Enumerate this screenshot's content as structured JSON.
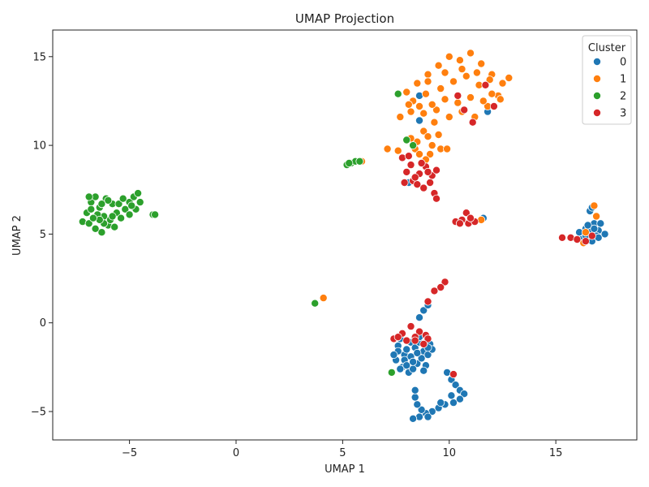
{
  "chart_data": {
    "type": "scatter",
    "title": "UMAP Projection",
    "xlabel": "UMAP 1",
    "ylabel": "UMAP 2",
    "xlim": [
      -8.6,
      18.8
    ],
    "ylim": [
      -6.6,
      16.5
    ],
    "xticks": [
      -5,
      0,
      5,
      10,
      15
    ],
    "yticks": [
      -5,
      0,
      5,
      10,
      15
    ],
    "grid": false,
    "legend": {
      "title": "Cluster",
      "placement": "top-right"
    },
    "series": [
      {
        "name": "0",
        "color": "#1f77b4",
        "points": [
          [
            8.6,
            12.8
          ],
          [
            8.6,
            11.4
          ],
          [
            11.8,
            11.9
          ],
          [
            11.6,
            5.9
          ],
          [
            8.1,
            7.9
          ],
          [
            16.4,
            5.3
          ],
          [
            16.6,
            5.1
          ],
          [
            16.8,
            5.6
          ],
          [
            16.5,
            4.8
          ],
          [
            17.0,
            5.2
          ],
          [
            16.7,
            4.6
          ],
          [
            17.1,
            5.6
          ],
          [
            16.3,
            5.0
          ],
          [
            16.9,
            4.9
          ],
          [
            16.6,
            6.3
          ],
          [
            17.3,
            5.0
          ],
          [
            16.2,
            4.7
          ],
          [
            16.8,
            5.3
          ],
          [
            16.5,
            5.5
          ],
          [
            17.0,
            4.8
          ],
          [
            16.4,
            4.9
          ],
          [
            16.7,
            6.5
          ],
          [
            16.1,
            5.1
          ],
          [
            8.6,
            0.3
          ],
          [
            8.8,
            0.7
          ],
          [
            9.0,
            1.0
          ],
          [
            7.6,
            -1.3
          ],
          [
            7.9,
            -1.8
          ],
          [
            8.2,
            -1.1
          ],
          [
            8.5,
            -2.3
          ],
          [
            8.8,
            -1.6
          ],
          [
            9.1,
            -1.2
          ],
          [
            7.8,
            -2.5
          ],
          [
            8.1,
            -2.8
          ],
          [
            8.4,
            -1.4
          ],
          [
            8.7,
            -2.0
          ],
          [
            9.0,
            -1.8
          ],
          [
            7.5,
            -2.1
          ],
          [
            7.7,
            -0.9
          ],
          [
            8.0,
            -1.5
          ],
          [
            8.3,
            -2.6
          ],
          [
            8.6,
            -1.1
          ],
          [
            8.9,
            -2.4
          ],
          [
            7.9,
            -2.1
          ],
          [
            8.2,
            -1.9
          ],
          [
            8.5,
            -1.7
          ],
          [
            7.6,
            -1.6
          ],
          [
            8.8,
            -2.7
          ],
          [
            9.2,
            -1.5
          ],
          [
            7.4,
            -1.8
          ],
          [
            8.0,
            -2.4
          ],
          [
            8.6,
            -0.8
          ],
          [
            8.3,
            -2.2
          ],
          [
            7.7,
            -2.6
          ],
          [
            9.0,
            -1.4
          ],
          [
            9.9,
            -2.8
          ],
          [
            10.1,
            -3.2
          ],
          [
            10.3,
            -3.5
          ],
          [
            10.5,
            -3.8
          ],
          [
            10.7,
            -4.0
          ],
          [
            10.5,
            -4.3
          ],
          [
            10.2,
            -4.5
          ],
          [
            9.8,
            -4.6
          ],
          [
            9.5,
            -4.8
          ],
          [
            9.2,
            -5.0
          ],
          [
            8.9,
            -5.1
          ],
          [
            8.6,
            -5.3
          ],
          [
            8.3,
            -5.4
          ],
          [
            8.7,
            -4.9
          ],
          [
            8.5,
            -4.6
          ],
          [
            8.4,
            -4.2
          ],
          [
            8.4,
            -3.8
          ],
          [
            9.0,
            -5.3
          ],
          [
            9.6,
            -4.5
          ],
          [
            10.1,
            -4.1
          ]
        ]
      },
      {
        "name": "1",
        "color": "#ff7f0e",
        "points": [
          [
            8.0,
            13.0
          ],
          [
            8.5,
            13.5
          ],
          [
            9.0,
            14.0
          ],
          [
            9.5,
            14.5
          ],
          [
            10.0,
            15.0
          ],
          [
            10.5,
            14.8
          ],
          [
            11.0,
            15.2
          ],
          [
            11.5,
            14.6
          ],
          [
            12.0,
            14.0
          ],
          [
            12.5,
            13.5
          ],
          [
            12.8,
            13.8
          ],
          [
            12.3,
            12.8
          ],
          [
            11.8,
            12.2
          ],
          [
            11.2,
            11.6
          ],
          [
            10.6,
            11.9
          ],
          [
            10.0,
            11.6
          ],
          [
            9.4,
            12.0
          ],
          [
            8.8,
            11.8
          ],
          [
            8.2,
            11.9
          ],
          [
            7.7,
            11.6
          ],
          [
            8.3,
            12.5
          ],
          [
            8.9,
            12.9
          ],
          [
            9.6,
            13.2
          ],
          [
            10.2,
            13.6
          ],
          [
            10.8,
            13.9
          ],
          [
            11.4,
            13.4
          ],
          [
            12.0,
            12.9
          ],
          [
            11.6,
            12.5
          ],
          [
            11.0,
            12.7
          ],
          [
            10.4,
            12.4
          ],
          [
            9.8,
            12.6
          ],
          [
            9.2,
            12.3
          ],
          [
            8.6,
            12.2
          ],
          [
            9.0,
            13.6
          ],
          [
            9.8,
            14.1
          ],
          [
            10.6,
            14.3
          ],
          [
            11.3,
            14.1
          ],
          [
            11.9,
            13.7
          ],
          [
            12.4,
            12.6
          ],
          [
            8.1,
            12.3
          ],
          [
            9.3,
            11.3
          ],
          [
            8.8,
            10.8
          ],
          [
            8.5,
            10.2
          ],
          [
            9.0,
            10.5
          ],
          [
            9.6,
            9.8
          ],
          [
            9.1,
            9.5
          ],
          [
            8.4,
            9.8
          ],
          [
            8.9,
            9.2
          ],
          [
            9.9,
            9.8
          ],
          [
            8.2,
            10.4
          ],
          [
            7.6,
            9.7
          ],
          [
            7.1,
            9.8
          ],
          [
            9.2,
            10.0
          ],
          [
            8.6,
            9.5
          ],
          [
            9.5,
            10.6
          ],
          [
            5.9,
            9.1
          ],
          [
            4.1,
            1.4
          ],
          [
            11.5,
            5.8
          ],
          [
            16.8,
            6.6
          ],
          [
            16.9,
            6.0
          ],
          [
            16.3,
            4.5
          ],
          [
            16.4,
            5.1
          ]
        ]
      },
      {
        "name": "2",
        "color": "#2ca02c",
        "points": [
          [
            -7.2,
            5.7
          ],
          [
            -7.0,
            6.2
          ],
          [
            -6.8,
            6.8
          ],
          [
            -6.6,
            7.1
          ],
          [
            -6.4,
            6.5
          ],
          [
            -6.2,
            6.0
          ],
          [
            -6.0,
            5.5
          ],
          [
            -6.3,
            5.1
          ],
          [
            -6.6,
            5.3
          ],
          [
            -6.9,
            5.6
          ],
          [
            -5.8,
            6.7
          ],
          [
            -5.6,
            6.2
          ],
          [
            -5.4,
            5.9
          ],
          [
            -5.2,
            6.4
          ],
          [
            -5.0,
            6.8
          ],
          [
            -4.8,
            7.1
          ],
          [
            -4.6,
            7.3
          ],
          [
            -4.5,
            6.8
          ],
          [
            -4.7,
            6.4
          ],
          [
            -5.0,
            6.1
          ],
          [
            -6.1,
            7.0
          ],
          [
            -6.5,
            6.1
          ],
          [
            -5.9,
            5.8
          ],
          [
            -6.8,
            6.4
          ],
          [
            -6.2,
            5.6
          ],
          [
            -5.5,
            6.7
          ],
          [
            -6.0,
            6.9
          ],
          [
            -6.4,
            5.8
          ],
          [
            -5.7,
            5.4
          ],
          [
            -6.7,
            5.9
          ],
          [
            -4.9,
            6.6
          ],
          [
            -5.3,
            7.0
          ],
          [
            -6.3,
            6.7
          ],
          [
            -5.8,
            6.0
          ],
          [
            -6.9,
            7.1
          ],
          [
            -3.9,
            6.1
          ],
          [
            -3.8,
            6.1
          ],
          [
            5.2,
            8.9
          ],
          [
            5.4,
            9.0
          ],
          [
            5.6,
            9.1
          ],
          [
            5.8,
            9.1
          ],
          [
            5.3,
            9.0
          ],
          [
            7.6,
            12.9
          ],
          [
            8.0,
            10.3
          ],
          [
            8.3,
            10.0
          ],
          [
            3.7,
            1.1
          ],
          [
            7.3,
            -2.8
          ]
        ]
      },
      {
        "name": "3",
        "color": "#d62728",
        "points": [
          [
            8.0,
            8.5
          ],
          [
            8.3,
            8.0
          ],
          [
            8.6,
            8.4
          ],
          [
            8.9,
            8.8
          ],
          [
            9.2,
            8.3
          ],
          [
            8.5,
            7.8
          ],
          [
            8.8,
            7.6
          ],
          [
            9.1,
            7.9
          ],
          [
            9.3,
            7.3
          ],
          [
            9.4,
            7.0
          ],
          [
            8.2,
            8.9
          ],
          [
            8.7,
            9.0
          ],
          [
            9.0,
            8.5
          ],
          [
            8.4,
            8.2
          ],
          [
            7.9,
            7.9
          ],
          [
            7.8,
            9.3
          ],
          [
            8.1,
            9.4
          ],
          [
            9.4,
            8.6
          ],
          [
            10.3,
            5.7
          ],
          [
            10.6,
            5.8
          ],
          [
            10.9,
            5.6
          ],
          [
            11.2,
            5.7
          ],
          [
            10.8,
            6.2
          ],
          [
            11.0,
            5.9
          ],
          [
            10.5,
            5.6
          ],
          [
            15.3,
            4.8
          ],
          [
            15.7,
            4.8
          ],
          [
            16.0,
            4.7
          ],
          [
            16.4,
            4.6
          ],
          [
            16.7,
            4.9
          ],
          [
            9.8,
            2.3
          ],
          [
            9.6,
            2.0
          ],
          [
            9.3,
            1.8
          ],
          [
            9.0,
            1.2
          ],
          [
            7.4,
            -0.9
          ],
          [
            7.8,
            -0.6
          ],
          [
            8.2,
            -0.2
          ],
          [
            8.6,
            -0.5
          ],
          [
            8.9,
            -0.7
          ],
          [
            9.0,
            -0.9
          ],
          [
            8.4,
            -0.8
          ],
          [
            8.0,
            -1.0
          ],
          [
            7.6,
            -0.8
          ],
          [
            8.8,
            -1.2
          ],
          [
            8.4,
            -1.0
          ],
          [
            10.2,
            -2.9
          ],
          [
            10.7,
            12.0
          ],
          [
            11.1,
            11.3
          ],
          [
            12.1,
            12.2
          ],
          [
            10.4,
            12.8
          ],
          [
            11.7,
            13.4
          ]
        ]
      }
    ]
  }
}
